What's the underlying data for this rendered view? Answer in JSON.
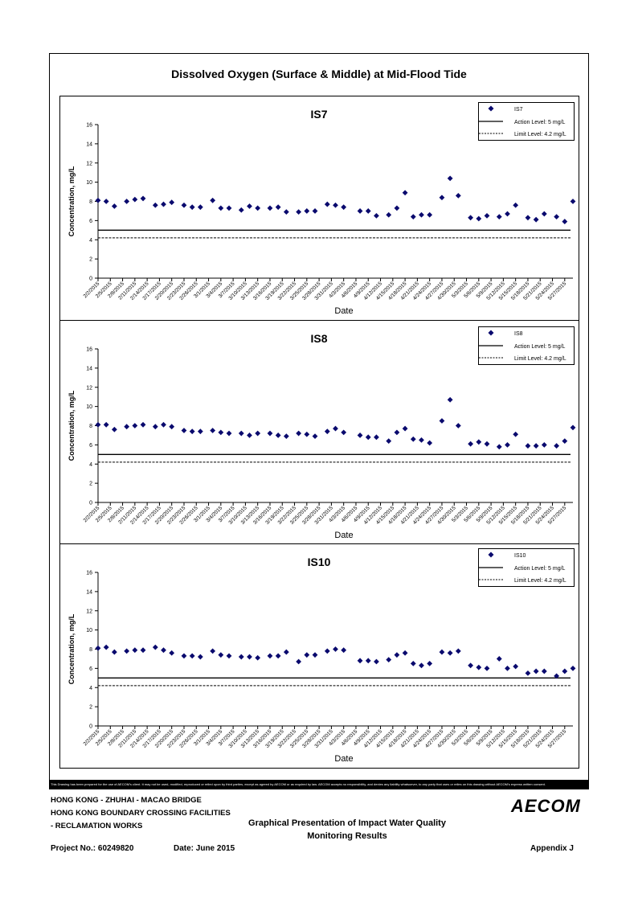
{
  "document": {
    "main_title": "Dissolved Oxygen (Surface & Middle) at Mid-Flood Tide",
    "disclaimer": "This Drawing has been prepared for the use of AECOM's client. It may not be used, modified, reproduced or relied upon by third parties, except as agreed by AECOM or as required by law. AECOM accepts no responsibility, and denies any liability whatsoever, to any party that uses or relies on this drawing without AECOM's express written consent.",
    "footer": {
      "line1": "HONG KONG - ZHUHAI - MACAO BRIDGE",
      "line2": "HONG KONG BOUNDARY CROSSING FACILITIES",
      "line3": "- RECLAMATION WORKS",
      "presentation_line1": "Graphical Presentation of Impact Water Quality",
      "presentation_line2": "Monitoring Results",
      "project": "Project No.: 60249820",
      "date": "Date: June 2015",
      "appendix": "Appendix J",
      "logo": "AECOM"
    }
  },
  "chart_data": [
    {
      "type": "scatter",
      "title": "IS7",
      "xlabel": "Date",
      "ylabel": "Concentration, mg/L",
      "ylim": [
        0,
        16
      ],
      "yticks": [
        0,
        2,
        4,
        6,
        8,
        10,
        12,
        14,
        16
      ],
      "xticks": [
        "2/2/2015",
        "2/5/2015",
        "2/8/2015",
        "2/11/2015",
        "2/14/2015",
        "2/17/2015",
        "2/20/2015",
        "2/23/2015",
        "2/26/2015",
        "3/1/2015",
        "3/4/2015",
        "3/7/2015",
        "3/10/2015",
        "3/13/2015",
        "3/16/2015",
        "3/19/2015",
        "3/22/2015",
        "3/25/2015",
        "3/28/2015",
        "3/31/2015",
        "4/3/2015",
        "4/6/2015",
        "4/9/2015",
        "4/12/2015",
        "4/15/2015",
        "4/18/2015",
        "4/21/2015",
        "4/24/2015",
        "4/27/2015",
        "4/30/2015",
        "5/3/2015",
        "5/6/2015",
        "5/9/2015",
        "5/12/2015",
        "5/15/2015",
        "5/18/2015",
        "5/21/2015",
        "5/24/2015",
        "5/27/2015"
      ],
      "legend_position": "top-right",
      "series": [
        {
          "name": "IS7",
          "marker": "diamond",
          "color": "#0a0a6e",
          "x": [
            "2/2/2015",
            "2/4/2015",
            "2/6/2015",
            "2/9/2015",
            "2/11/2015",
            "2/13/2015",
            "2/16/2015",
            "2/18/2015",
            "2/20/2015",
            "2/23/2015",
            "2/25/2015",
            "2/27/2015",
            "3/2/2015",
            "3/4/2015",
            "3/6/2015",
            "3/9/2015",
            "3/11/2015",
            "3/13/2015",
            "3/16/2015",
            "3/18/2015",
            "3/20/2015",
            "3/23/2015",
            "3/25/2015",
            "3/27/2015",
            "3/30/2015",
            "4/1/2015",
            "4/3/2015",
            "4/7/2015",
            "4/9/2015",
            "4/11/2015",
            "4/14/2015",
            "4/16/2015",
            "4/18/2015",
            "4/20/2015",
            "4/22/2015",
            "4/24/2015",
            "4/27/2015",
            "4/29/2015",
            "5/1/2015",
            "5/4/2015",
            "5/6/2015",
            "5/8/2015",
            "5/11/2015",
            "5/13/2015",
            "5/15/2015",
            "5/18/2015",
            "5/20/2015",
            "5/22/2015",
            "5/25/2015",
            "5/27/2015",
            "5/29/2015"
          ],
          "y": [
            8.1,
            8.0,
            7.5,
            8.0,
            8.2,
            8.3,
            7.6,
            7.7,
            7.9,
            7.6,
            7.4,
            7.4,
            8.1,
            7.3,
            7.3,
            7.1,
            7.5,
            7.3,
            7.3,
            7.4,
            6.9,
            6.9,
            7.0,
            7.0,
            7.7,
            7.6,
            7.4,
            7.0,
            7.0,
            6.5,
            6.6,
            7.3,
            8.9,
            6.4,
            6.6,
            6.6,
            8.4,
            10.4,
            8.6,
            6.3,
            6.2,
            6.5,
            6.4,
            6.7,
            7.6,
            6.3,
            6.1,
            6.7,
            6.4,
            5.9,
            8.0
          ]
        },
        {
          "name": "Action Level: 5 mg/L",
          "line": "solid",
          "value": 5
        },
        {
          "name": "Limit Level: 4.2 mg/L",
          "line": "dashed",
          "value": 4.2
        }
      ]
    },
    {
      "type": "scatter",
      "title": "IS8",
      "xlabel": "Date",
      "ylabel": "Concentration, mg/L",
      "ylim": [
        0,
        16
      ],
      "yticks": [
        0,
        2,
        4,
        6,
        8,
        10,
        12,
        14,
        16
      ],
      "xticks": [
        "2/2/2015",
        "2/5/2015",
        "2/8/2015",
        "2/11/2015",
        "2/14/2015",
        "2/17/2015",
        "2/20/2015",
        "2/23/2015",
        "2/26/2015",
        "3/1/2015",
        "3/4/2015",
        "3/7/2015",
        "3/10/2015",
        "3/13/2015",
        "3/16/2015",
        "3/19/2015",
        "3/22/2015",
        "3/25/2015",
        "3/28/2015",
        "3/31/2015",
        "4/3/2015",
        "4/6/2015",
        "4/9/2015",
        "4/12/2015",
        "4/15/2015",
        "4/18/2015",
        "4/21/2015",
        "4/24/2015",
        "4/27/2015",
        "4/30/2015",
        "5/3/2015",
        "5/6/2015",
        "5/9/2015",
        "5/12/2015",
        "5/15/2015",
        "5/18/2015",
        "5/21/2015",
        "5/24/2015",
        "5/27/2015"
      ],
      "legend_position": "top-right",
      "series": [
        {
          "name": "IS8",
          "marker": "diamond",
          "color": "#0a0a6e",
          "x": [
            "2/2/2015",
            "2/4/2015",
            "2/6/2015",
            "2/9/2015",
            "2/11/2015",
            "2/13/2015",
            "2/16/2015",
            "2/18/2015",
            "2/20/2015",
            "2/23/2015",
            "2/25/2015",
            "2/27/2015",
            "3/2/2015",
            "3/4/2015",
            "3/6/2015",
            "3/9/2015",
            "3/11/2015",
            "3/13/2015",
            "3/16/2015",
            "3/18/2015",
            "3/20/2015",
            "3/23/2015",
            "3/25/2015",
            "3/27/2015",
            "3/30/2015",
            "4/1/2015",
            "4/3/2015",
            "4/7/2015",
            "4/9/2015",
            "4/11/2015",
            "4/14/2015",
            "4/16/2015",
            "4/18/2015",
            "4/20/2015",
            "4/22/2015",
            "4/24/2015",
            "4/27/2015",
            "4/29/2015",
            "5/1/2015",
            "5/4/2015",
            "5/6/2015",
            "5/8/2015",
            "5/11/2015",
            "5/13/2015",
            "5/15/2015",
            "5/18/2015",
            "5/20/2015",
            "5/22/2015",
            "5/25/2015",
            "5/27/2015",
            "5/29/2015"
          ],
          "y": [
            8.1,
            8.1,
            7.6,
            7.9,
            8.0,
            8.1,
            7.9,
            8.1,
            7.9,
            7.5,
            7.4,
            7.4,
            7.5,
            7.3,
            7.2,
            7.2,
            7.0,
            7.2,
            7.2,
            7.0,
            6.9,
            7.2,
            7.1,
            6.9,
            7.4,
            7.7,
            7.3,
            7.0,
            6.8,
            6.8,
            6.4,
            7.3,
            7.7,
            6.6,
            6.5,
            6.2,
            8.5,
            10.7,
            8.0,
            6.1,
            6.3,
            6.1,
            5.8,
            6.0,
            7.1,
            5.9,
            5.9,
            6.0,
            5.9,
            6.4,
            7.8
          ]
        },
        {
          "name": "Action Level: 5 mg/L",
          "line": "solid",
          "value": 5
        },
        {
          "name": "Limit Level: 4.2 mg/L",
          "line": "dashed",
          "value": 4.2
        }
      ]
    },
    {
      "type": "scatter",
      "title": "IS10",
      "xlabel": "Date",
      "ylabel": "Concentration, mg/L",
      "ylim": [
        0,
        16
      ],
      "yticks": [
        0,
        2,
        4,
        6,
        8,
        10,
        12,
        14,
        16
      ],
      "xticks": [
        "2/2/2015",
        "2/5/2015",
        "2/8/2015",
        "2/11/2015",
        "2/14/2015",
        "2/17/2015",
        "2/20/2015",
        "2/23/2015",
        "2/26/2015",
        "3/1/2015",
        "3/4/2015",
        "3/7/2015",
        "3/10/2015",
        "3/13/2015",
        "3/16/2015",
        "3/19/2015",
        "3/22/2015",
        "3/25/2015",
        "3/28/2015",
        "3/31/2015",
        "4/3/2015",
        "4/6/2015",
        "4/9/2015",
        "4/12/2015",
        "4/15/2015",
        "4/18/2015",
        "4/21/2015",
        "4/24/2015",
        "4/27/2015",
        "4/30/2015",
        "5/3/2015",
        "5/6/2015",
        "5/9/2015",
        "5/12/2015",
        "5/15/2015",
        "5/18/2015",
        "5/21/2015",
        "5/24/2015",
        "5/27/2015"
      ],
      "legend_position": "top-right",
      "series": [
        {
          "name": "IS10",
          "marker": "diamond",
          "color": "#0a0a6e",
          "x": [
            "2/2/2015",
            "2/4/2015",
            "2/6/2015",
            "2/9/2015",
            "2/11/2015",
            "2/13/2015",
            "2/16/2015",
            "2/18/2015",
            "2/20/2015",
            "2/23/2015",
            "2/25/2015",
            "2/27/2015",
            "3/2/2015",
            "3/4/2015",
            "3/6/2015",
            "3/9/2015",
            "3/11/2015",
            "3/13/2015",
            "3/16/2015",
            "3/18/2015",
            "3/20/2015",
            "3/23/2015",
            "3/25/2015",
            "3/27/2015",
            "3/30/2015",
            "4/1/2015",
            "4/3/2015",
            "4/7/2015",
            "4/9/2015",
            "4/11/2015",
            "4/14/2015",
            "4/16/2015",
            "4/18/2015",
            "4/20/2015",
            "4/22/2015",
            "4/24/2015",
            "4/27/2015",
            "4/29/2015",
            "5/1/2015",
            "5/4/2015",
            "5/6/2015",
            "5/8/2015",
            "5/11/2015",
            "5/13/2015",
            "5/15/2015",
            "5/18/2015",
            "5/20/2015",
            "5/22/2015",
            "5/25/2015",
            "5/27/2015",
            "5/29/2015"
          ],
          "y": [
            8.1,
            8.2,
            7.7,
            7.8,
            7.9,
            7.9,
            8.2,
            7.9,
            7.6,
            7.3,
            7.3,
            7.2,
            7.8,
            7.4,
            7.3,
            7.2,
            7.2,
            7.1,
            7.3,
            7.3,
            7.7,
            6.7,
            7.4,
            7.4,
            7.8,
            8.0,
            7.9,
            6.8,
            6.8,
            6.7,
            6.9,
            7.4,
            7.6,
            6.5,
            6.3,
            6.5,
            7.7,
            7.6,
            7.8,
            6.3,
            6.1,
            6.0,
            7.0,
            6.0,
            6.2,
            5.5,
            5.7,
            5.7,
            5.2,
            5.7,
            6.0
          ]
        },
        {
          "name": "Action Level: 5 mg/L",
          "line": "solid",
          "value": 5
        },
        {
          "name": "Limit Level: 4.2 mg/L",
          "line": "dashed",
          "value": 4.2
        }
      ]
    }
  ]
}
